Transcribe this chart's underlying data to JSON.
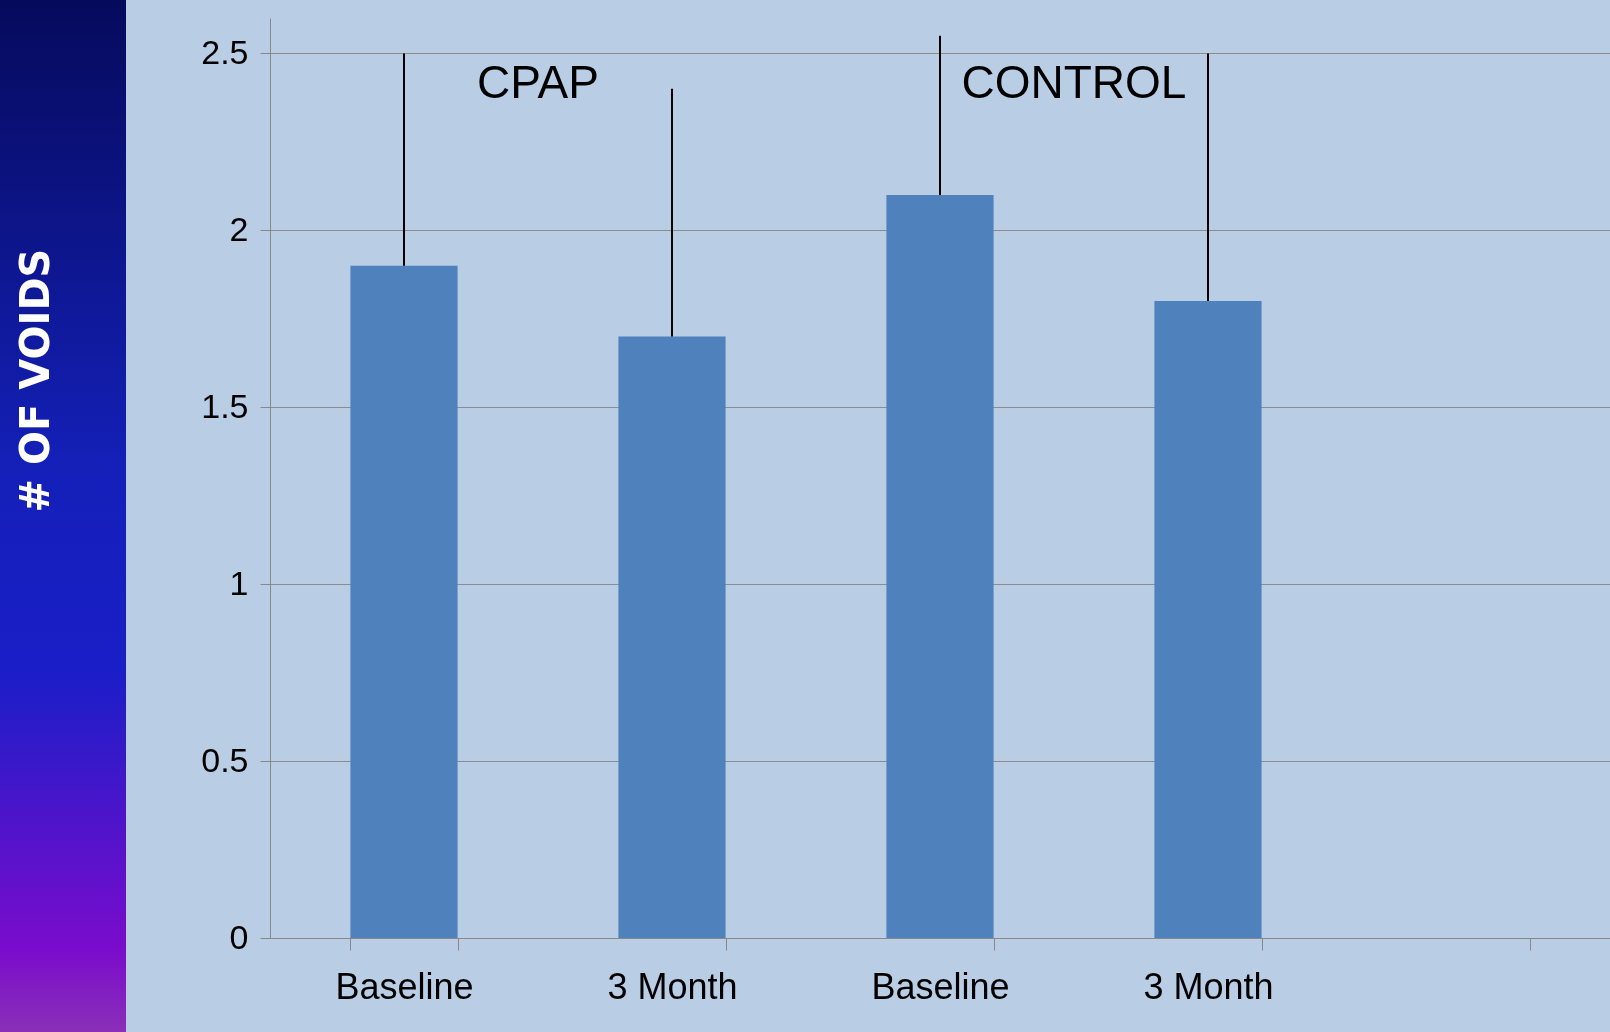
{
  "chart_data": {
    "type": "bar",
    "categories": [
      "Baseline",
      "3 Month",
      "Baseline",
      "3 Month",
      null
    ],
    "values": [
      1.9,
      1.7,
      2.1,
      1.8,
      null
    ],
    "errors": [
      [
        1.9,
        2.5
      ],
      [
        1.7,
        2.4
      ],
      [
        2.1,
        2.55
      ],
      [
        1.8,
        2.5
      ],
      null
    ],
    "color": "#4f81bd",
    "ylabel": "# OF VOIDS",
    "ylim": [
      0,
      2.6
    ],
    "yticks": [
      0,
      0.5,
      1,
      1.5,
      2,
      2.5
    ],
    "grid": "y",
    "annotations": [
      "CPAP",
      "CONTROL"
    ]
  }
}
